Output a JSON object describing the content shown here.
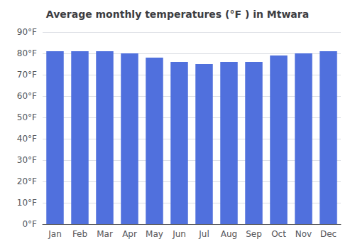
{
  "chart_data": {
    "type": "bar",
    "title": "Average monthly temperatures (°F ) in Mtwara",
    "categories": [
      "Jan",
      "Feb",
      "Mar",
      "Apr",
      "May",
      "Jun",
      "Jul",
      "Aug",
      "Sep",
      "Oct",
      "Nov",
      "Dec"
    ],
    "values": [
      81,
      81,
      81,
      80,
      78,
      76,
      75,
      76,
      76,
      79,
      80,
      81
    ],
    "ylim": [
      0,
      90
    ],
    "yticks": [
      {
        "value": 0,
        "label": "0°F"
      },
      {
        "value": 10,
        "label": "10°F"
      },
      {
        "value": 20,
        "label": "20°F"
      },
      {
        "value": 30,
        "label": "30°F"
      },
      {
        "value": 40,
        "label": "40°F"
      },
      {
        "value": 50,
        "label": "50°F"
      },
      {
        "value": 60,
        "label": "60°F"
      },
      {
        "value": 70,
        "label": "70°F"
      },
      {
        "value": 80,
        "label": "80°F"
      },
      {
        "value": 90,
        "label": "90°F"
      }
    ],
    "grid": true
  }
}
